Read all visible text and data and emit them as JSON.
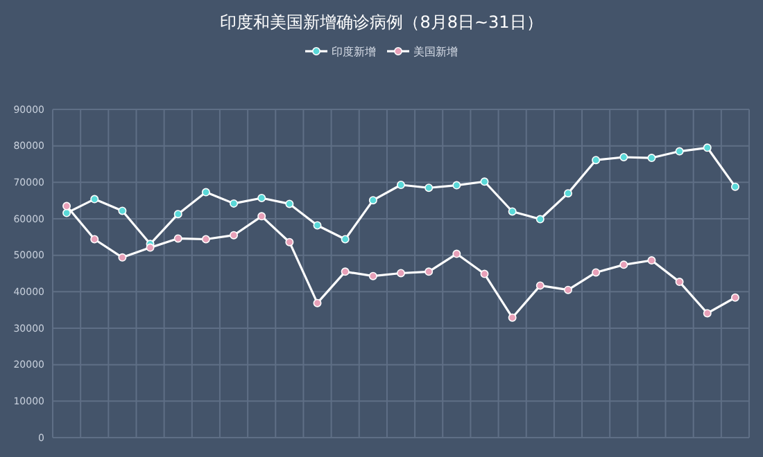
{
  "chart_data": {
    "type": "line",
    "title": "印度和美国新增确诊病例（8月8日~31日）",
    "categories": [
      null,
      null,
      null,
      null,
      null,
      null,
      null,
      null,
      null,
      null,
      null,
      null,
      null,
      null,
      null,
      null,
      null,
      null,
      null,
      null,
      null,
      null,
      null,
      null,
      null
    ],
    "series": [
      {
        "name": "印度新增",
        "color": "#5ad8d8",
        "values": [
          61600,
          65400,
          62200,
          53100,
          61300,
          67300,
          64200,
          65700,
          64100,
          58200,
          54400,
          65100,
          69300,
          68500,
          69200,
          70200,
          62000,
          59900,
          67000,
          76100,
          76900,
          76700,
          78500,
          79500,
          68800
        ]
      },
      {
        "name": "美国新增",
        "color": "#e8a0b8",
        "values": [
          63500,
          54400,
          49400,
          52100,
          54600,
          54400,
          55500,
          60700,
          53600,
          36900,
          45500,
          44300,
          45100,
          45500,
          50400,
          44900,
          32900,
          41700,
          40500,
          45300,
          47400,
          48600,
          42700,
          34100,
          38400
        ]
      }
    ],
    "ylim": [
      0,
      90000
    ],
    "yticks": [
      0,
      10000,
      20000,
      30000,
      40000,
      50000,
      60000,
      70000,
      80000,
      90000
    ],
    "grid": true,
    "legend": "top",
    "marker": "circle",
    "line_style": "solid",
    "tick_labels": "y"
  }
}
